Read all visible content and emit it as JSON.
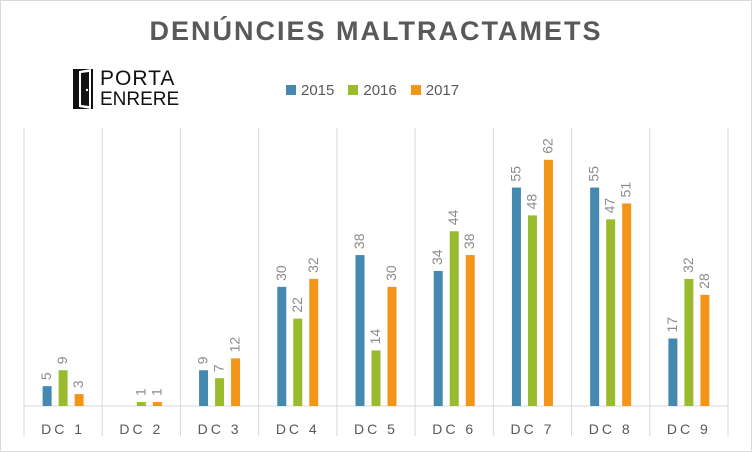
{
  "title": "DENÚNCIES  MALTRACTAMETS",
  "logo": {
    "line1": "PORTA",
    "line2": "ENRERE"
  },
  "colors": {
    "s2015": "#4589b0",
    "s2016": "#9bbb2f",
    "s2017": "#f39617",
    "grid": "#d9d9d9",
    "text": "#595959",
    "label": "#8c8c8c"
  },
  "chart_data": {
    "type": "bar",
    "title": "DENÚNCIES  MALTRACTAMETS",
    "categories": [
      "DC 1",
      "DC 2",
      "DC 3",
      "DC 4",
      "DC 5",
      "DC 6",
      "DC 7",
      "DC 8",
      "DC 9"
    ],
    "series": [
      {
        "name": "2015",
        "values": [
          5,
          0,
          9,
          30,
          38,
          34,
          55,
          55,
          17
        ]
      },
      {
        "name": "2016",
        "values": [
          9,
          1,
          7,
          22,
          14,
          44,
          48,
          47,
          32
        ]
      },
      {
        "name": "2017",
        "values": [
          3,
          1,
          12,
          32,
          30,
          38,
          62,
          51,
          28
        ]
      }
    ],
    "ylim": [
      0,
      70
    ],
    "legend": "top",
    "grid": "vertical"
  }
}
